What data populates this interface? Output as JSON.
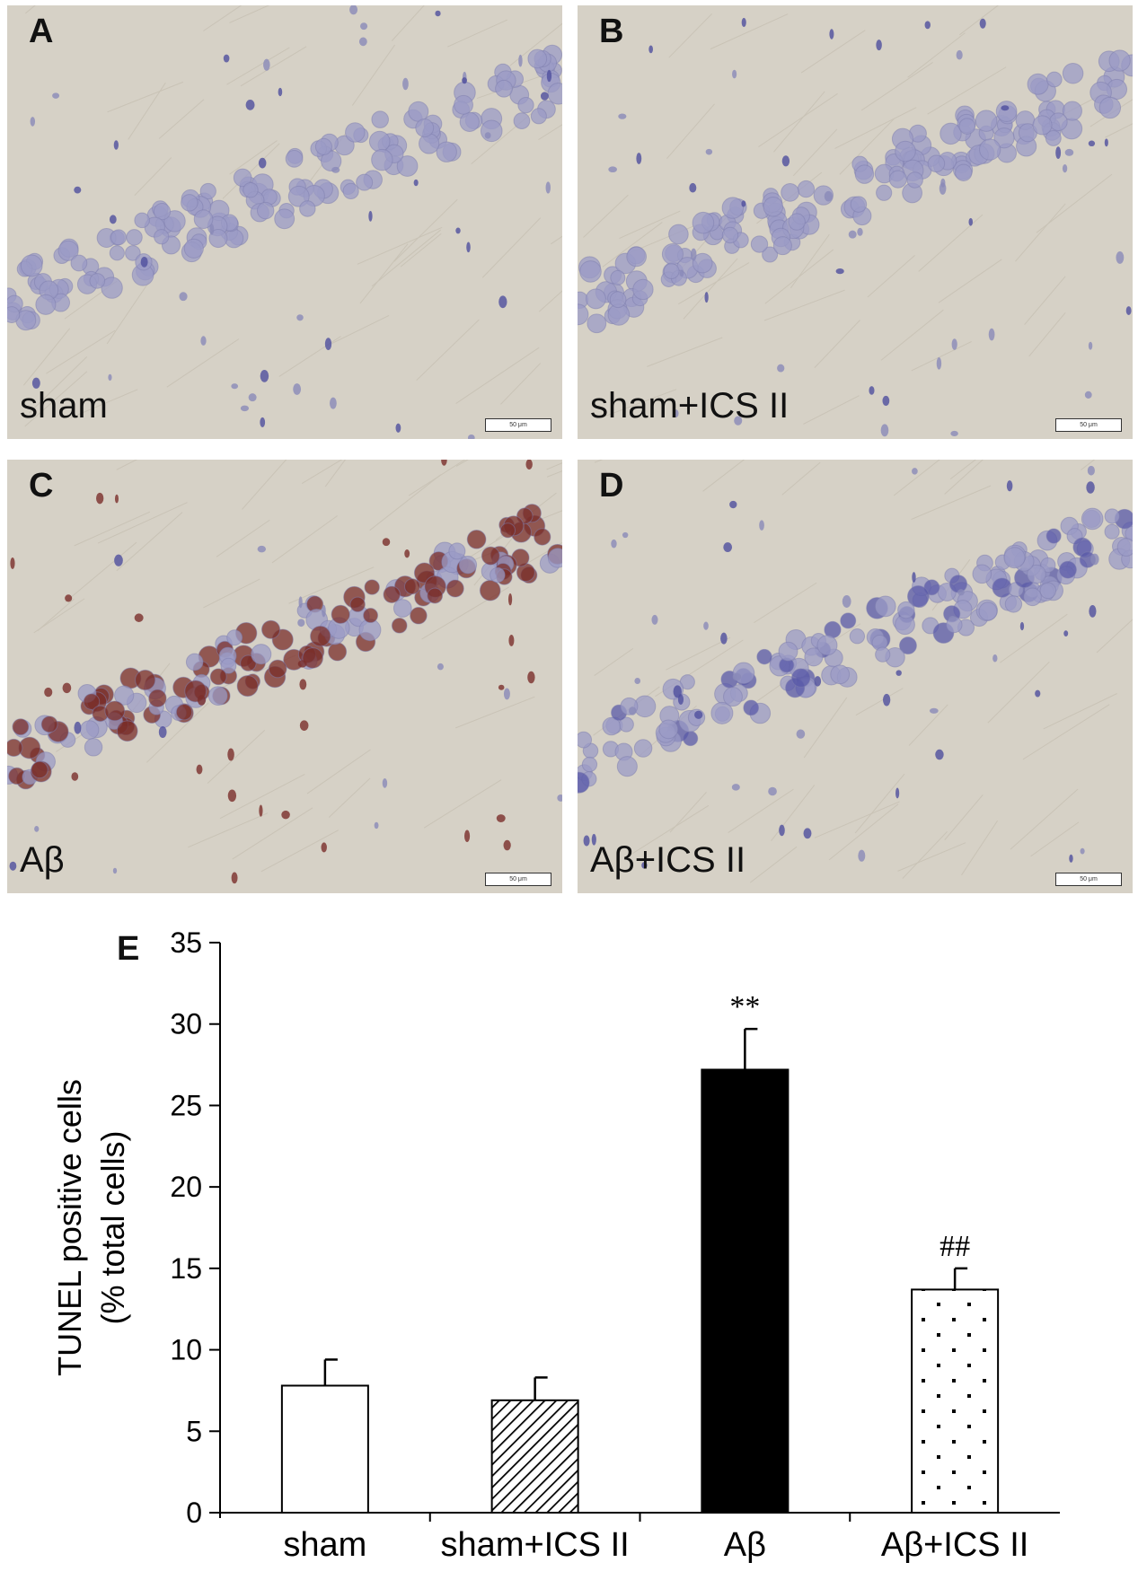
{
  "panels": [
    {
      "id": "A",
      "label": "sham",
      "stain": "blue",
      "scale": "50 μm"
    },
    {
      "id": "B",
      "label": "sham+ICS II",
      "stain": "blue",
      "scale": "50 μm"
    },
    {
      "id": "C",
      "label": "Aβ",
      "stain": "brown",
      "scale": "50 μm"
    },
    {
      "id": "D",
      "label": "Aβ+ICS II",
      "stain": "mixed",
      "scale": "50 μm"
    }
  ],
  "chart_letter": "E",
  "colors": {
    "tissue_bg": "#d6d1c6",
    "nucleus_blue": "#9b9bc6",
    "nucleus_dark_blue": "#5a5aa8",
    "nucleus_brown": "#7a2e2a",
    "bar_solid": "#000000",
    "bar_outline": "#000000"
  },
  "chart_data": {
    "type": "bar",
    "categories": [
      "sham",
      "sham+ICS II",
      "Aβ",
      "Aβ+ICS II"
    ],
    "values": [
      7.8,
      6.9,
      27.2,
      13.7
    ],
    "errors": [
      1.6,
      1.4,
      2.5,
      1.3
    ],
    "fills": [
      "white",
      "hatch",
      "black",
      "dots"
    ],
    "annotations": [
      "",
      "",
      "**",
      "##"
    ],
    "ylabel_line1": "TUNEL positive cells",
    "ylabel_line2": "(% total cells)",
    "xlabel": "",
    "ylim": [
      0,
      35
    ],
    "yticks": [
      0,
      5,
      10,
      15,
      20,
      25,
      30,
      35
    ]
  }
}
